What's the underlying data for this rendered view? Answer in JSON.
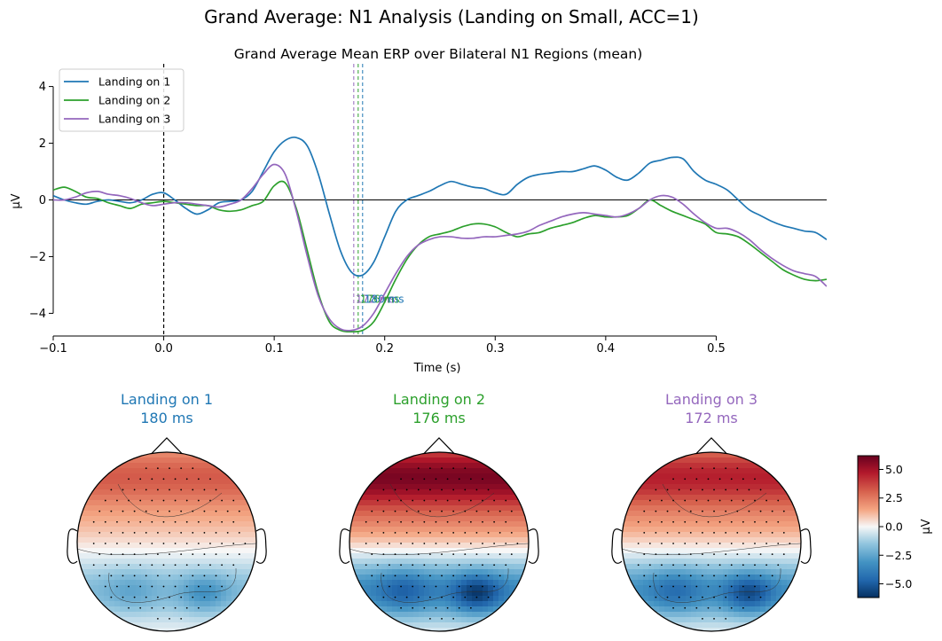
{
  "figure": {
    "suptitle": "Grand Average: N1 Analysis (Landing on Small, ACC=1)"
  },
  "chart_data": [
    {
      "type": "line",
      "title": "Grand Average Mean ERP over Bilateral N1 Regions (mean)",
      "xlabel": "Time (s)",
      "ylabel": "µV",
      "xlim": [
        -0.1,
        0.6
      ],
      "ylim": [
        -4.8,
        4.8
      ],
      "xticks": [
        -0.1,
        0.0,
        0.1,
        0.2,
        0.3,
        0.4,
        0.5
      ],
      "xtick_labels": [
        "−0.1",
        "0.0",
        "0.1",
        "0.2",
        "0.3",
        "0.4",
        "0.5"
      ],
      "yticks": [
        -4,
        -2,
        0,
        2,
        4
      ],
      "ytick_labels": [
        "−4",
        "−2",
        "0",
        "2",
        "4"
      ],
      "legend_position": "top-left",
      "grid": false,
      "stimulus_onset": 0.0,
      "series": [
        {
          "name": "Landing on 1",
          "color": "#1f77b4",
          "peak_time": 0.18,
          "peak_label": "180 ms",
          "x": [
            -0.1,
            -0.09,
            -0.08,
            -0.07,
            -0.06,
            -0.05,
            -0.04,
            -0.03,
            -0.02,
            -0.01,
            0.0,
            0.01,
            0.02,
            0.03,
            0.04,
            0.05,
            0.06,
            0.07,
            0.08,
            0.09,
            0.1,
            0.11,
            0.12,
            0.13,
            0.14,
            0.15,
            0.16,
            0.17,
            0.18,
            0.19,
            0.2,
            0.21,
            0.22,
            0.23,
            0.24,
            0.25,
            0.26,
            0.27,
            0.28,
            0.29,
            0.3,
            0.31,
            0.32,
            0.33,
            0.34,
            0.35,
            0.36,
            0.37,
            0.38,
            0.39,
            0.4,
            0.41,
            0.42,
            0.43,
            0.44,
            0.45,
            0.46,
            0.47,
            0.48,
            0.49,
            0.5,
            0.51,
            0.52,
            0.53,
            0.54,
            0.55,
            0.56,
            0.57,
            0.58,
            0.59,
            0.6
          ],
          "y": [
            0.15,
            0.0,
            -0.1,
            -0.15,
            -0.05,
            0.0,
            -0.05,
            -0.1,
            0.0,
            0.2,
            0.25,
            0.0,
            -0.3,
            -0.5,
            -0.35,
            -0.1,
            -0.05,
            0.0,
            0.3,
            1.0,
            1.7,
            2.1,
            2.2,
            1.9,
            0.9,
            -0.5,
            -1.8,
            -2.55,
            -2.65,
            -2.2,
            -1.3,
            -0.4,
            0.0,
            0.15,
            0.3,
            0.5,
            0.65,
            0.55,
            0.45,
            0.4,
            0.25,
            0.2,
            0.55,
            0.8,
            0.9,
            0.95,
            1.0,
            1.0,
            1.1,
            1.2,
            1.05,
            0.8,
            0.7,
            0.95,
            1.3,
            1.4,
            1.5,
            1.45,
            1.0,
            0.7,
            0.55,
            0.35,
            0.0,
            -0.35,
            -0.55,
            -0.75,
            -0.9,
            -1.0,
            -1.1,
            -1.15,
            -1.4
          ]
        },
        {
          "name": "Landing on 2",
          "color": "#2ca02c",
          "peak_time": 0.176,
          "peak_label": "176 ms",
          "x": [
            -0.1,
            -0.09,
            -0.08,
            -0.07,
            -0.06,
            -0.05,
            -0.04,
            -0.03,
            -0.02,
            -0.01,
            0.0,
            0.01,
            0.02,
            0.03,
            0.04,
            0.05,
            0.06,
            0.07,
            0.08,
            0.09,
            0.1,
            0.11,
            0.12,
            0.13,
            0.14,
            0.15,
            0.16,
            0.17,
            0.18,
            0.19,
            0.2,
            0.21,
            0.22,
            0.23,
            0.24,
            0.25,
            0.26,
            0.27,
            0.28,
            0.29,
            0.3,
            0.31,
            0.32,
            0.33,
            0.34,
            0.35,
            0.36,
            0.37,
            0.38,
            0.39,
            0.4,
            0.41,
            0.42,
            0.43,
            0.44,
            0.45,
            0.46,
            0.47,
            0.48,
            0.49,
            0.5,
            0.51,
            0.52,
            0.53,
            0.54,
            0.55,
            0.56,
            0.57,
            0.58,
            0.59,
            0.6
          ],
          "y": [
            0.35,
            0.45,
            0.3,
            0.1,
            0.05,
            -0.1,
            -0.2,
            -0.3,
            -0.15,
            -0.1,
            -0.05,
            -0.1,
            -0.15,
            -0.2,
            -0.2,
            -0.35,
            -0.4,
            -0.35,
            -0.2,
            -0.05,
            0.5,
            0.6,
            -0.3,
            -1.8,
            -3.3,
            -4.3,
            -4.6,
            -4.65,
            -4.6,
            -4.3,
            -3.6,
            -2.8,
            -2.1,
            -1.6,
            -1.3,
            -1.2,
            -1.1,
            -0.95,
            -0.85,
            -0.85,
            -0.95,
            -1.15,
            -1.3,
            -1.2,
            -1.15,
            -1.0,
            -0.9,
            -0.8,
            -0.65,
            -0.55,
            -0.6,
            -0.6,
            -0.55,
            -0.3,
            0.0,
            -0.2,
            -0.4,
            -0.55,
            -0.7,
            -0.85,
            -1.15,
            -1.2,
            -1.3,
            -1.55,
            -1.85,
            -2.15,
            -2.45,
            -2.65,
            -2.8,
            -2.85,
            -2.8
          ]
        },
        {
          "name": "Landing on 3",
          "color": "#9467bd",
          "peak_time": 0.172,
          "peak_label": "172 ms",
          "x": [
            -0.1,
            -0.09,
            -0.08,
            -0.07,
            -0.06,
            -0.05,
            -0.04,
            -0.03,
            -0.02,
            -0.01,
            0.0,
            0.01,
            0.02,
            0.03,
            0.04,
            0.05,
            0.06,
            0.07,
            0.08,
            0.09,
            0.1,
            0.11,
            0.12,
            0.13,
            0.14,
            0.15,
            0.16,
            0.17,
            0.18,
            0.19,
            0.2,
            0.21,
            0.22,
            0.23,
            0.24,
            0.25,
            0.26,
            0.27,
            0.28,
            0.29,
            0.3,
            0.31,
            0.32,
            0.33,
            0.34,
            0.35,
            0.36,
            0.37,
            0.38,
            0.39,
            0.4,
            0.41,
            0.42,
            0.43,
            0.44,
            0.45,
            0.46,
            0.47,
            0.48,
            0.49,
            0.5,
            0.51,
            0.52,
            0.53,
            0.54,
            0.55,
            0.56,
            0.57,
            0.58,
            0.59,
            0.6
          ],
          "y": [
            0.0,
            0.0,
            0.1,
            0.25,
            0.3,
            0.2,
            0.15,
            0.05,
            -0.1,
            -0.2,
            -0.15,
            -0.1,
            -0.1,
            -0.15,
            -0.2,
            -0.25,
            -0.15,
            0.0,
            0.4,
            0.9,
            1.25,
            0.9,
            -0.4,
            -2.0,
            -3.4,
            -4.2,
            -4.55,
            -4.6,
            -4.45,
            -4.0,
            -3.3,
            -2.6,
            -2.0,
            -1.6,
            -1.4,
            -1.3,
            -1.3,
            -1.35,
            -1.35,
            -1.3,
            -1.3,
            -1.25,
            -1.2,
            -1.1,
            -0.9,
            -0.75,
            -0.6,
            -0.5,
            -0.45,
            -0.5,
            -0.55,
            -0.6,
            -0.5,
            -0.3,
            0.0,
            0.15,
            0.1,
            -0.15,
            -0.5,
            -0.8,
            -1.0,
            -1.0,
            -1.15,
            -1.4,
            -1.75,
            -2.05,
            -2.3,
            -2.5,
            -2.6,
            -2.7,
            -3.05
          ]
        }
      ]
    },
    {
      "type": "heatmap",
      "subtype": "topomap",
      "colormap": "RdBu_r",
      "colorbar": {
        "label": "µV",
        "vmin": -6.2,
        "vmax": 6.2,
        "ticks": [
          -5.0,
          -2.5,
          0.0,
          2.5,
          5.0
        ],
        "tick_labels": [
          "−5.0",
          "−2.5",
          "0.0",
          "2.5",
          "5.0"
        ]
      },
      "maps": [
        {
          "condition": "Landing on 1",
          "time_label": "180 ms",
          "color": "#1f77b4",
          "frontal_max": 3.2,
          "posterior_min": -3.2
        },
        {
          "condition": "Landing on 2",
          "time_label": "176 ms",
          "color": "#2ca02c",
          "frontal_max": 5.8,
          "posterior_min": -6.0
        },
        {
          "condition": "Landing on 3",
          "time_label": "172 ms",
          "color": "#9467bd",
          "frontal_max": 4.5,
          "posterior_min": -5.5
        }
      ]
    }
  ]
}
